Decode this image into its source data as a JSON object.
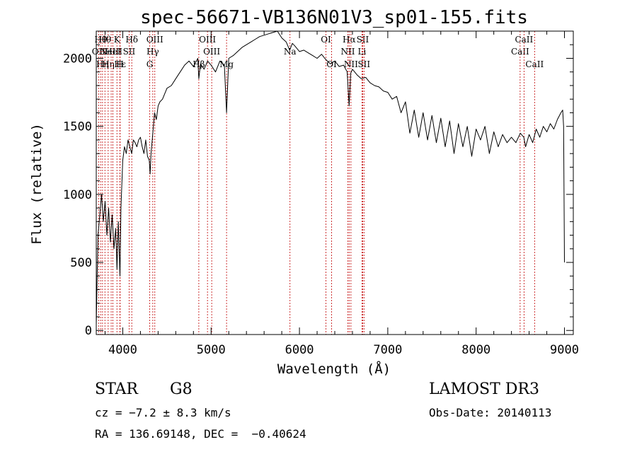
{
  "chart_data": {
    "type": "line",
    "title": "spec-56671-VB136N01V3_sp01-155.fits",
    "xlabel": "Wavelength (Å)",
    "ylabel": "Flux (relative)",
    "xlim": [
      3700,
      9100
    ],
    "ylim": [
      -30,
      2200
    ],
    "xticks": [
      4000,
      5000,
      6000,
      7000,
      8000,
      9000
    ],
    "yticks": [
      0,
      500,
      1000,
      1500,
      2000
    ],
    "series": [
      {
        "name": "flux",
        "x": [
          3700,
          3710,
          3720,
          3740,
          3760,
          3780,
          3800,
          3820,
          3840,
          3860,
          3880,
          3900,
          3920,
          3935,
          3950,
          3968,
          3980,
          4000,
          4020,
          4040,
          4060,
          4080,
          4101,
          4120,
          4140,
          4160,
          4180,
          4200,
          4220,
          4240,
          4260,
          4280,
          4300,
          4310,
          4320,
          4340,
          4360,
          4380,
          4400,
          4420,
          4450,
          4500,
          4550,
          4600,
          4650,
          4700,
          4750,
          4800,
          4850,
          4861,
          4880,
          4920,
          4960,
          5000,
          5050,
          5100,
          5150,
          5175,
          5200,
          5250,
          5300,
          5350,
          5400,
          5450,
          5500,
          5550,
          5600,
          5650,
          5700,
          5750,
          5800,
          5850,
          5890,
          5920,
          5950,
          6000,
          6050,
          6100,
          6150,
          6200,
          6250,
          6300,
          6350,
          6400,
          6450,
          6500,
          6540,
          6563,
          6580,
          6600,
          6650,
          6700,
          6750,
          6800,
          6850,
          6900,
          6950,
          7000,
          7050,
          7100,
          7150,
          7200,
          7250,
          7300,
          7350,
          7400,
          7450,
          7500,
          7550,
          7600,
          7650,
          7700,
          7750,
          7800,
          7850,
          7900,
          7950,
          8000,
          8050,
          8100,
          8150,
          8200,
          8250,
          8300,
          8350,
          8400,
          8450,
          8500,
          8540,
          8560,
          8600,
          8640,
          8680,
          8720,
          8760,
          8800,
          8840,
          8880,
          8920,
          8960,
          8980,
          8990,
          9000
        ],
        "y": [
          40,
          380,
          700,
          850,
          1000,
          800,
          950,
          700,
          900,
          650,
          850,
          600,
          750,
          450,
          800,
          400,
          900,
          1250,
          1350,
          1300,
          1400,
          1350,
          1300,
          1400,
          1380,
          1350,
          1400,
          1420,
          1350,
          1300,
          1400,
          1280,
          1250,
          1150,
          1300,
          1450,
          1600,
          1550,
          1650,
          1680,
          1700,
          1780,
          1800,
          1850,
          1900,
          1950,
          1980,
          1940,
          2000,
          1850,
          1960,
          1920,
          1980,
          1950,
          1900,
          1980,
          1950,
          1600,
          2000,
          2020,
          2050,
          2080,
          2100,
          2120,
          2140,
          2160,
          2170,
          2180,
          2190,
          2200,
          2150,
          2120,
          2060,
          2110,
          2090,
          2050,
          2060,
          2040,
          2020,
          2000,
          2030,
          1990,
          1960,
          1980,
          1940,
          1950,
          1900,
          1650,
          1890,
          1920,
          1880,
          1850,
          1860,
          1820,
          1800,
          1790,
          1760,
          1750,
          1700,
          1720,
          1600,
          1680,
          1450,
          1620,
          1420,
          1600,
          1400,
          1580,
          1380,
          1560,
          1350,
          1540,
          1300,
          1520,
          1350,
          1500,
          1280,
          1480,
          1400,
          1500,
          1300,
          1460,
          1350,
          1440,
          1380,
          1420,
          1380,
          1450,
          1420,
          1350,
          1440,
          1380,
          1480,
          1420,
          1500,
          1460,
          1520,
          1480,
          1550,
          1600,
          1620,
          1500,
          500
        ]
      }
    ],
    "lines": [
      {
        "x": 3727,
        "label": "OII",
        "row": 1
      },
      {
        "x": 3750,
        "label": "Hθ",
        "row": 0
      },
      {
        "x": 3771,
        "label": "Hη",
        "row": 2
      },
      {
        "x": 3798,
        "label": "Hθ",
        "row": 0
      },
      {
        "x": 3835,
        "label": "Hη",
        "row": 2
      },
      {
        "x": 3869,
        "label": "NeIII",
        "row": 1
      },
      {
        "x": 3889,
        "label": "HeI",
        "row": 1
      },
      {
        "x": 3934,
        "label": "K",
        "row": 0
      },
      {
        "x": 3970,
        "label": "Hε",
        "row": 2
      },
      {
        "x": 3968,
        "label": "H",
        "row": 2
      },
      {
        "x": 4072,
        "label": "SII",
        "row": 1
      },
      {
        "x": 4102,
        "label": "Hδ",
        "row": 0
      },
      {
        "x": 4305,
        "label": "G",
        "row": 2
      },
      {
        "x": 4340,
        "label": "Hγ",
        "row": 1
      },
      {
        "x": 4363,
        "label": "OIII",
        "row": 0
      },
      {
        "x": 4861,
        "label": "Hβ",
        "row": 2
      },
      {
        "x": 4959,
        "label": "OIII",
        "row": 0
      },
      {
        "x": 5007,
        "label": "OIII",
        "row": 1
      },
      {
        "x": 5175,
        "label": "Mg",
        "row": 2
      },
      {
        "x": 5893,
        "label": "Na",
        "row": 1
      },
      {
        "x": 6300,
        "label": "OI",
        "row": 0
      },
      {
        "x": 6364,
        "label": "OI",
        "row": 2
      },
      {
        "x": 6548,
        "label": "NII",
        "row": 1
      },
      {
        "x": 6563,
        "label": "Hα",
        "row": 0
      },
      {
        "x": 6583,
        "label": "NII",
        "row": 2
      },
      {
        "x": 6716,
        "label": "SII",
        "row": 0
      },
      {
        "x": 6708,
        "label": "Li",
        "row": 1
      },
      {
        "x": 6731,
        "label": "SII",
        "row": 2
      },
      {
        "x": 8498,
        "label": "CaII",
        "row": 1
      },
      {
        "x": 8542,
        "label": "CaII",
        "row": 0
      },
      {
        "x": 8662,
        "label": "CaII",
        "row": 2
      }
    ]
  },
  "info": {
    "object_class": "STAR",
    "subclass": "G8",
    "survey": "LAMOST DR3",
    "redshift": "cz = −7.2 ± 8.3 km/s",
    "obs_date": "Obs-Date: 20140113",
    "coords": "RA = 136.69148, DEC =  −0.40624"
  }
}
